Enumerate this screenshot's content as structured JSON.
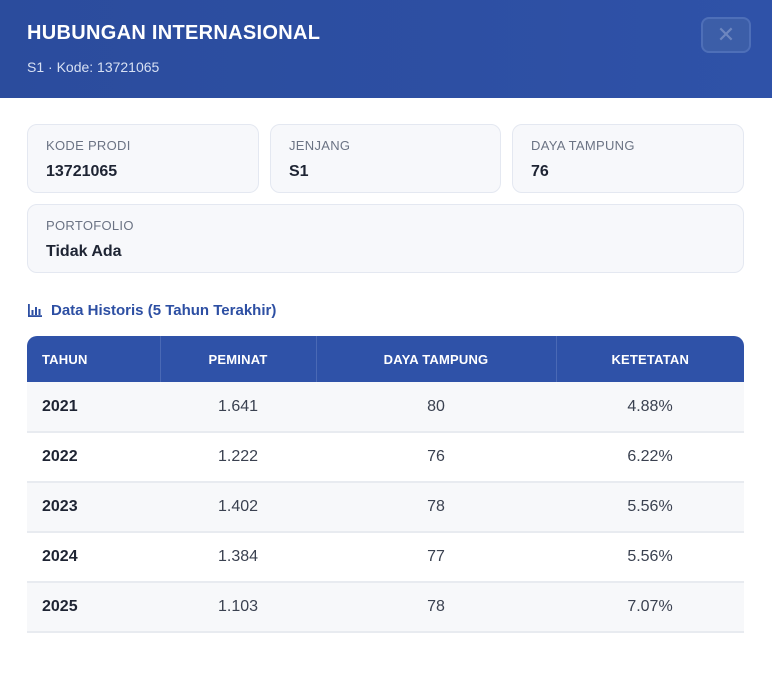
{
  "header": {
    "title": "HUBUNGAN INTERNASIONAL",
    "subtitle": "S1 · Kode: 13721065",
    "close_label": "✕"
  },
  "info": {
    "kode_prodi": {
      "label": "KODE PRODI",
      "value": "13721065"
    },
    "jenjang": {
      "label": "JENJANG",
      "value": "S1"
    },
    "daya_tampung": {
      "label": "DAYA TAMPUNG",
      "value": "76"
    },
    "portofolio": {
      "label": "PORTOFOLIO",
      "value": "Tidak Ada"
    }
  },
  "section": {
    "title": "Data Historis (5 Tahun Terakhir)",
    "icon": "bar-chart-icon"
  },
  "table": {
    "headers": [
      "TAHUN",
      "PEMINAT",
      "DAYA TAMPUNG",
      "KETETATAN"
    ],
    "rows": [
      [
        "2021",
        "1.641",
        "80",
        "4.88%"
      ],
      [
        "2022",
        "1.222",
        "76",
        "6.22%"
      ],
      [
        "2023",
        "1.402",
        "78",
        "5.56%"
      ],
      [
        "2024",
        "1.384",
        "77",
        "5.56%"
      ],
      [
        "2025",
        "1.103",
        "78",
        "7.07%"
      ]
    ]
  },
  "colors": {
    "header_bg": "#2d4fa3",
    "accent": "#2f52a8",
    "card_bg": "#f7f8fb"
  }
}
